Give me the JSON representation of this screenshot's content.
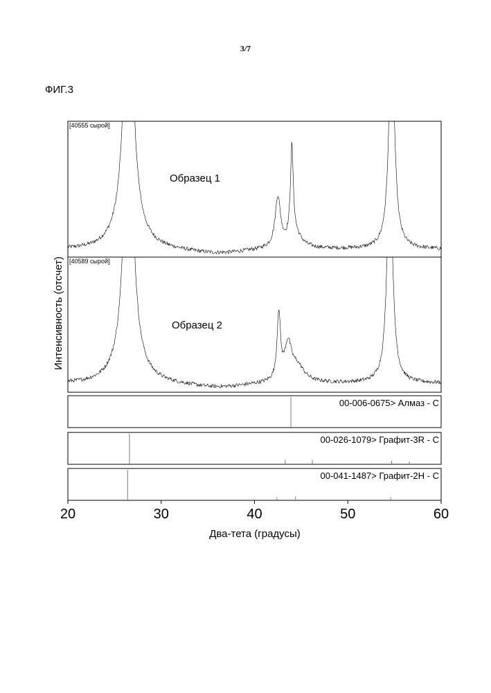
{
  "page_number": "3/7",
  "figure_label": "ФИГ.3",
  "chart_data": {
    "type": "line",
    "xlabel": "Два-тета (градусы)",
    "ylabel": "Интенсивность (отсчет)",
    "xlim": [
      20,
      60
    ],
    "xticks": [
      "20",
      "30",
      "40",
      "50",
      "60"
    ],
    "xtick_values": [
      20,
      30,
      40,
      50,
      60
    ],
    "panels": [
      {
        "tag": "[40555 сырой]",
        "name": "Образец 1",
        "baseline": 0.07,
        "peaks": [
          {
            "x": 26.5,
            "h": 2.5,
            "w": 0.6
          },
          {
            "x": 42.5,
            "h": 0.45,
            "w": 0.35
          },
          {
            "x": 44.0,
            "h": 0.82,
            "w": 0.18
          },
          {
            "x": 44.3,
            "h": 0.12,
            "w": 0.9
          },
          {
            "x": 54.7,
            "h": 2.0,
            "w": 0.35
          }
        ]
      },
      {
        "tag": "[40589 сырой]",
        "name": "Образец 2",
        "baseline": 0.08,
        "peaks": [
          {
            "x": 26.5,
            "h": 2.5,
            "w": 0.6
          },
          {
            "x": 42.6,
            "h": 0.6,
            "w": 0.22
          },
          {
            "x": 43.6,
            "h": 0.32,
            "w": 0.45
          },
          {
            "x": 44.6,
            "h": 0.14,
            "w": 0.9
          },
          {
            "x": 54.5,
            "h": 2.0,
            "w": 0.35
          }
        ]
      }
    ],
    "references": [
      {
        "label": "00-006-0675> Алмаз - C",
        "sticks": [
          {
            "x": 43.9,
            "h": 1.0
          }
        ]
      },
      {
        "label": "00-026-1079> Графит-3R - C",
        "sticks": [
          {
            "x": 26.6,
            "h": 1.0
          },
          {
            "x": 43.3,
            "h": 0.15
          },
          {
            "x": 46.2,
            "h": 0.15
          },
          {
            "x": 54.7,
            "h": 0.12
          },
          {
            "x": 56.6,
            "h": 0.1
          }
        ]
      },
      {
        "label": "00-041-1487> Графит-2H - C",
        "sticks": [
          {
            "x": 26.4,
            "h": 1.0
          },
          {
            "x": 42.4,
            "h": 0.1
          },
          {
            "x": 44.4,
            "h": 0.12
          },
          {
            "x": 54.6,
            "h": 0.1
          }
        ]
      }
    ],
    "grid": false
  }
}
